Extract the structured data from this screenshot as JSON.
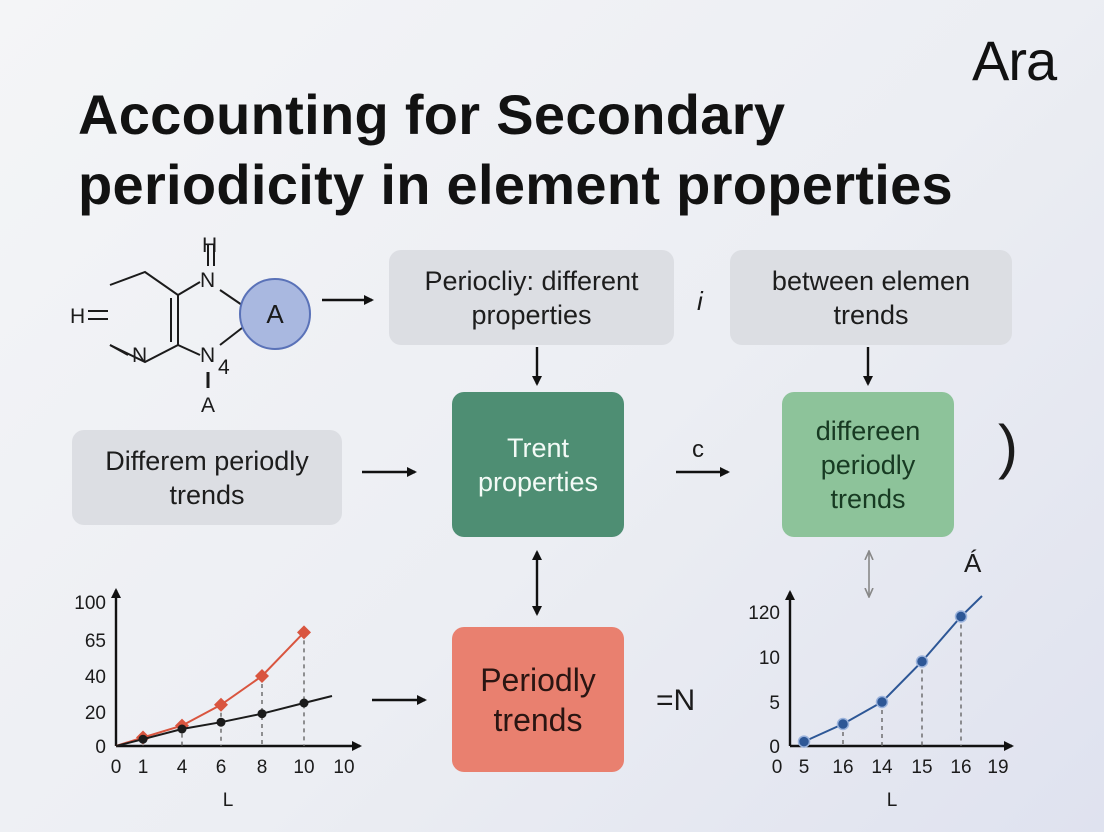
{
  "title": {
    "line1": "Accounting for Secondary",
    "line2": "periodicity in element properties"
  },
  "logo": "Ara",
  "molecule": {
    "top_h": "H",
    "n_top": "N",
    "h_left": "H",
    "n_bottom_left": "N",
    "n_bottom_right": "N",
    "subscript": "4",
    "a_below": "A",
    "circle_label": "A"
  },
  "boxes": {
    "top_center": [
      "Periocliy: different",
      "properties"
    ],
    "top_right": [
      "between elemen",
      "trends"
    ],
    "mid_left": [
      "Differem periodly",
      "trends"
    ],
    "center": [
      "Trent",
      "properties"
    ],
    "mid_right": [
      "differeen",
      "periodly",
      "trends"
    ],
    "bottom_center": [
      "Periodly",
      "trends"
    ]
  },
  "labels": {
    "i_mark": "i",
    "c_mark": "c",
    "a_accent": "Á",
    "eq_n": "=N",
    "paren": ")"
  },
  "colors": {
    "gray_box": "#dcdee3",
    "teal_box": "#4e8e73",
    "mint_box": "#8dc39a",
    "salmon_box": "#e9806f",
    "circle_fill": "#a9b8e0",
    "red_series": "#d9553f",
    "dark_series": "#1b1b1b",
    "blue_series": "#2d5796"
  },
  "chart_data": [
    {
      "type": "line",
      "y_ticks": [
        "0",
        "20",
        "40",
        "65",
        "100"
      ],
      "x_ticks": [
        "0",
        "1",
        "4",
        "6",
        "8",
        "10",
        "10"
      ],
      "xlabel": "L",
      "series": [
        {
          "marker": "diamond",
          "color": "#d9553f",
          "values": [
            0,
            5,
            12,
            24,
            40,
            72
          ]
        },
        {
          "marker": "dot",
          "color": "#1b1b1b",
          "values": [
            0,
            4,
            10,
            14,
            19,
            25
          ]
        }
      ]
    },
    {
      "type": "line",
      "y_ticks": [
        "0",
        "5",
        "10",
        "120"
      ],
      "x_ticks": [
        "0",
        "5",
        "16",
        "14",
        "15",
        "16",
        "19"
      ],
      "xlabel": "L",
      "series": [
        {
          "marker": "dot",
          "color": "#2d5796",
          "values": [
            0.5,
            2.5,
            5,
            9.5,
            14.5
          ]
        }
      ]
    }
  ]
}
